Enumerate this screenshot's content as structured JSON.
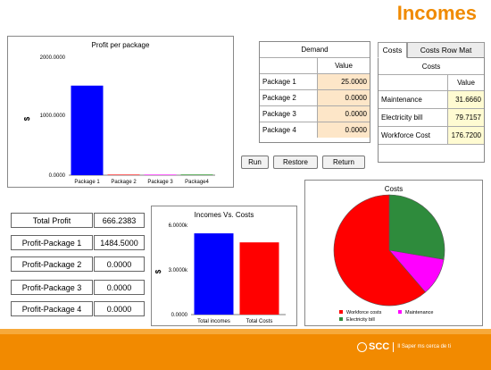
{
  "page_title": "Incomes",
  "profit_chart": {
    "title": "Profit per package",
    "ylabel": "$",
    "y_ticks": [
      "2000.0000",
      "1000.0000",
      "0.0000"
    ],
    "chart_data": {
      "type": "bar",
      "categories": [
        "Package 1",
        "Package 2",
        "Package 3",
        "Package4"
      ],
      "values": [
        1484.5,
        0,
        0,
        0
      ],
      "ylim": [
        0,
        2000
      ],
      "colors": [
        "#0000ff",
        "#ff0000",
        "#ff00ff",
        "#008000"
      ]
    }
  },
  "demand": {
    "header": "Demand",
    "value_header": "Value",
    "rows": [
      {
        "label": "Package 1",
        "value": "25.0000"
      },
      {
        "label": "Package 2",
        "value": "0.0000"
      },
      {
        "label": "Package 3",
        "value": "0.0000"
      },
      {
        "label": "Package 4",
        "value": "0.0000"
      }
    ]
  },
  "buttons": {
    "run": "Run",
    "restore": "Restore",
    "return": "Return"
  },
  "tabs": {
    "costs": "Costs",
    "row_mat": "Costs Row Mat"
  },
  "costs_table": {
    "header": "Costs",
    "value_header": "Value",
    "rows": [
      {
        "label": "Maintenance",
        "value": "31.6660"
      },
      {
        "label": "Electricity bill",
        "value": "79.7157"
      },
      {
        "label": "Workforce Cost",
        "value": "176.7200"
      }
    ]
  },
  "kpis": [
    {
      "label": "Total Profit",
      "value": "666.2383"
    },
    {
      "label": "Profit-Package 1",
      "value": "1484.5000"
    },
    {
      "label": "Profit-Package 2",
      "value": "0.0000"
    },
    {
      "label": "Profit-Package 3",
      "value": "0.0000"
    },
    {
      "label": "Profit-Package 4",
      "value": "0.0000"
    }
  ],
  "ivc_chart": {
    "title": "Incomes Vs. Costs",
    "ylabel": "$",
    "y_ticks": [
      "6.0000k",
      "3.0000k",
      "0.0000"
    ],
    "chart_data": {
      "type": "bar",
      "categories": [
        "Total incomes",
        "Total Costs"
      ],
      "values": [
        5400,
        4800
      ],
      "ylim": [
        0,
        6000
      ],
      "colors": [
        "#0000ff",
        "#ff0000"
      ]
    }
  },
  "pie_chart": {
    "title": "Costs",
    "chart_data": {
      "type": "pie",
      "labels": [
        "Workforce costs",
        "Maintenance",
        "Electricity bill"
      ],
      "values": [
        176.72,
        31.666,
        79.7157
      ],
      "colors": [
        "#ff0000",
        "#ff00ff",
        "#2e8b3c"
      ]
    }
  },
  "footer": {
    "brand": "SCC",
    "tagline": "Il Saper ms cerca de ti"
  }
}
